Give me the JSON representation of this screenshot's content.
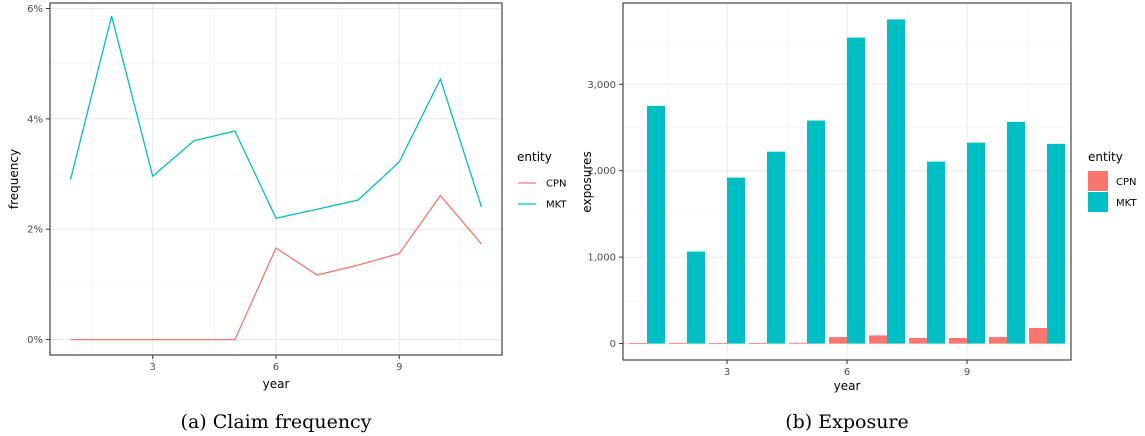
{
  "chart_data": [
    {
      "type": "line",
      "caption": "(a) Claim frequency",
      "xlabel": "year",
      "ylabel": "frequency",
      "xlim": [
        0.5,
        11.5
      ],
      "ylim": [
        -0.0028,
        0.061
      ],
      "x_ticks": [
        3,
        6,
        9
      ],
      "y_ticks": [
        0,
        0.02,
        0.04,
        0.06
      ],
      "y_tick_labels": [
        "0%",
        "2%",
        "4%",
        "6%"
      ],
      "grid": true,
      "legend": {
        "title": "entity",
        "position": "right"
      },
      "x": [
        1,
        2,
        3,
        4,
        5,
        6,
        7,
        8,
        9,
        10,
        11
      ],
      "series": [
        {
          "name": "CPN",
          "color": "#F8766D",
          "values": [
            0,
            0,
            0,
            0,
            0,
            0.0166,
            0.0117,
            0.0135,
            0.0156,
            0.0261,
            0.0173
          ]
        },
        {
          "name": "MKT",
          "color": "#00BFC4",
          "values": [
            0.029,
            0.0586,
            0.0296,
            0.036,
            0.0378,
            0.022,
            0.0236,
            0.0253,
            0.0322,
            0.0472,
            0.024
          ]
        }
      ]
    },
    {
      "type": "bar",
      "caption": "(b) Exposure",
      "xlabel": "year",
      "ylabel": "exposures",
      "xlim": [
        0.4,
        11.6
      ],
      "ylim": [
        -190,
        3940
      ],
      "x_ticks": [
        3,
        6,
        9
      ],
      "y_ticks": [
        0,
        1000,
        2000,
        3000
      ],
      "y_tick_labels": [
        "0",
        "1,000",
        "2,000",
        "3,000"
      ],
      "grid": true,
      "legend": {
        "title": "entity",
        "position": "right"
      },
      "categories": [
        1,
        2,
        3,
        4,
        5,
        6,
        7,
        8,
        9,
        10,
        11
      ],
      "series": [
        {
          "name": "CPN",
          "color": "#F8766D",
          "values": [
            5,
            8,
            6,
            7,
            10,
            75,
            95,
            65,
            65,
            75,
            180
          ]
        },
        {
          "name": "MKT",
          "color": "#00BFC4",
          "values": [
            2750,
            1065,
            1920,
            2220,
            2580,
            3540,
            3750,
            2105,
            2325,
            2565,
            2310
          ]
        }
      ]
    }
  ]
}
